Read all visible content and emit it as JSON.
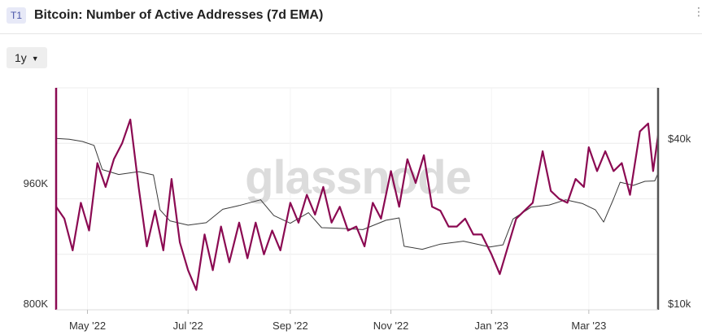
{
  "header": {
    "badge": "T1",
    "title": "Bitcoin: Number of Active Addresses (7d EMA)"
  },
  "toolbar": {
    "range_label": "1y"
  },
  "watermark": "glassnode",
  "colors": {
    "addresses": "#8b0a52",
    "price": "#3a3a3a",
    "grid": "#ececec",
    "axis": "#555555"
  },
  "chart_data": {
    "type": "line",
    "title": "Bitcoin: Number of Active Addresses (7d EMA)",
    "x_range": [
      "2022-04-12",
      "2023-04-12"
    ],
    "x_ticks": [
      {
        "date": "2022-05-01",
        "label": "May '22"
      },
      {
        "date": "2022-07-01",
        "label": "Jul '22"
      },
      {
        "date": "2022-09-01",
        "label": "Sep '22"
      },
      {
        "date": "2022-11-01",
        "label": "Nov '22"
      },
      {
        "date": "2023-01-01",
        "label": "Jan '23"
      },
      {
        "date": "2023-03-01",
        "label": "Mar '23"
      }
    ],
    "y_left": {
      "scale": "linear",
      "range": [
        800000,
        1080000
      ],
      "ticks": [
        {
          "v": 800000,
          "label": "800K"
        },
        {
          "v": 960000,
          "label": "960K"
        }
      ]
    },
    "y_right": {
      "scale": "log",
      "range": [
        10000,
        60000
      ],
      "ticks": [
        {
          "v": 10000,
          "label": "$10k"
        },
        {
          "v": 40000,
          "label": "$40k"
        }
      ]
    },
    "grid": true,
    "series": [
      {
        "axis": "left",
        "color": "#8b0a52",
        "points": [
          [
            "2022-04-12",
            930000
          ],
          [
            "2022-04-17",
            915000
          ],
          [
            "2022-04-22",
            875000
          ],
          [
            "2022-04-27",
            935000
          ],
          [
            "2022-05-02",
            900000
          ],
          [
            "2022-05-07",
            985000
          ],
          [
            "2022-05-12",
            955000
          ],
          [
            "2022-05-17",
            990000
          ],
          [
            "2022-05-22",
            1010000
          ],
          [
            "2022-05-27",
            1040000
          ],
          [
            "2022-06-01",
            955000
          ],
          [
            "2022-06-06",
            880000
          ],
          [
            "2022-06-11",
            925000
          ],
          [
            "2022-06-16",
            875000
          ],
          [
            "2022-06-21",
            965000
          ],
          [
            "2022-06-26",
            885000
          ],
          [
            "2022-07-01",
            850000
          ],
          [
            "2022-07-06",
            825000
          ],
          [
            "2022-07-11",
            895000
          ],
          [
            "2022-07-16",
            850000
          ],
          [
            "2022-07-21",
            905000
          ],
          [
            "2022-07-26",
            860000
          ],
          [
            "2022-08-01",
            910000
          ],
          [
            "2022-08-06",
            865000
          ],
          [
            "2022-08-11",
            910000
          ],
          [
            "2022-08-16",
            870000
          ],
          [
            "2022-08-21",
            900000
          ],
          [
            "2022-08-26",
            875000
          ],
          [
            "2022-09-01",
            935000
          ],
          [
            "2022-09-06",
            910000
          ],
          [
            "2022-09-11",
            945000
          ],
          [
            "2022-09-16",
            920000
          ],
          [
            "2022-09-21",
            955000
          ],
          [
            "2022-09-26",
            910000
          ],
          [
            "2022-10-01",
            930000
          ],
          [
            "2022-10-06",
            900000
          ],
          [
            "2022-10-11",
            905000
          ],
          [
            "2022-10-16",
            880000
          ],
          [
            "2022-10-21",
            935000
          ],
          [
            "2022-10-26",
            915000
          ],
          [
            "2022-11-01",
            975000
          ],
          [
            "2022-11-06",
            930000
          ],
          [
            "2022-11-11",
            990000
          ],
          [
            "2022-11-16",
            960000
          ],
          [
            "2022-11-21",
            995000
          ],
          [
            "2022-11-26",
            930000
          ],
          [
            "2022-12-01",
            925000
          ],
          [
            "2022-12-06",
            905000
          ],
          [
            "2022-12-11",
            905000
          ],
          [
            "2022-12-16",
            915000
          ],
          [
            "2022-12-21",
            895000
          ],
          [
            "2022-12-26",
            895000
          ],
          [
            "2023-01-01",
            870000
          ],
          [
            "2023-01-06",
            845000
          ],
          [
            "2023-01-11",
            880000
          ],
          [
            "2023-01-16",
            915000
          ],
          [
            "2023-01-21",
            925000
          ],
          [
            "2023-01-26",
            935000
          ],
          [
            "2023-02-01",
            1000000
          ],
          [
            "2023-02-06",
            950000
          ],
          [
            "2023-02-11",
            940000
          ],
          [
            "2023-02-16",
            935000
          ],
          [
            "2023-02-21",
            965000
          ],
          [
            "2023-02-26",
            955000
          ],
          [
            "2023-03-01",
            1005000
          ],
          [
            "2023-03-06",
            975000
          ],
          [
            "2023-03-11",
            1000000
          ],
          [
            "2023-03-16",
            975000
          ],
          [
            "2023-03-21",
            985000
          ],
          [
            "2023-03-26",
            945000
          ],
          [
            "2023-04-01",
            1025000
          ],
          [
            "2023-04-06",
            1035000
          ],
          [
            "2023-04-09",
            975000
          ],
          [
            "2023-04-12",
            1020000
          ]
        ]
      },
      {
        "axis": "right",
        "color": "#3a3a3a",
        "points": [
          [
            "2022-04-12",
            39900
          ],
          [
            "2022-04-20",
            39600
          ],
          [
            "2022-04-28",
            38900
          ],
          [
            "2022-05-05",
            37700
          ],
          [
            "2022-05-10",
            31000
          ],
          [
            "2022-05-20",
            29800
          ],
          [
            "2022-06-01",
            30500
          ],
          [
            "2022-06-10",
            29700
          ],
          [
            "2022-06-14",
            22400
          ],
          [
            "2022-06-20",
            20500
          ],
          [
            "2022-07-01",
            19800
          ],
          [
            "2022-07-12",
            20200
          ],
          [
            "2022-07-22",
            22500
          ],
          [
            "2022-08-01",
            23200
          ],
          [
            "2022-08-14",
            24300
          ],
          [
            "2022-08-22",
            21400
          ],
          [
            "2022-09-01",
            20100
          ],
          [
            "2022-09-12",
            21900
          ],
          [
            "2022-09-20",
            19400
          ],
          [
            "2022-10-01",
            19300
          ],
          [
            "2022-10-15",
            19100
          ],
          [
            "2022-10-29",
            20600
          ],
          [
            "2022-11-06",
            21000
          ],
          [
            "2022-11-09",
            16700
          ],
          [
            "2022-11-20",
            16300
          ],
          [
            "2022-12-01",
            17000
          ],
          [
            "2022-12-15",
            17400
          ],
          [
            "2022-12-31",
            16600
          ],
          [
            "2023-01-08",
            16900
          ],
          [
            "2023-01-14",
            20800
          ],
          [
            "2023-01-25",
            22900
          ],
          [
            "2023-02-05",
            23300
          ],
          [
            "2023-02-15",
            24300
          ],
          [
            "2023-02-25",
            23600
          ],
          [
            "2023-03-05",
            22400
          ],
          [
            "2023-03-10",
            20300
          ],
          [
            "2023-03-16",
            24500
          ],
          [
            "2023-03-20",
            28000
          ],
          [
            "2023-03-28",
            27300
          ],
          [
            "2023-04-04",
            28200
          ],
          [
            "2023-04-10",
            28300
          ],
          [
            "2023-04-12",
            30100
          ]
        ]
      }
    ]
  }
}
